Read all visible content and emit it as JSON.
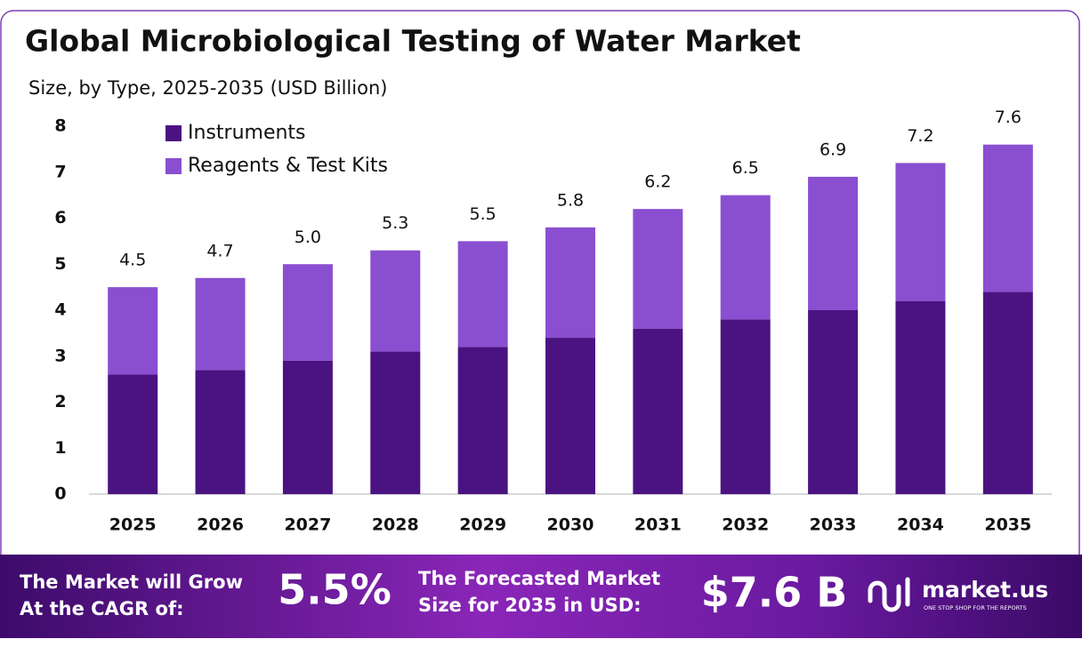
{
  "chart_data": {
    "type": "stacked-bar",
    "title": "Global Microbiological Testing of Water Market",
    "subtitle": "Size, by Type, 2025-2035 (USD Billion)",
    "categories": [
      "2025",
      "2026",
      "2027",
      "2028",
      "2029",
      "2030",
      "2031",
      "2032",
      "2033",
      "2034",
      "2035"
    ],
    "series": [
      {
        "name": "Instruments",
        "color": "#4b1382",
        "values": [
          2.6,
          2.7,
          2.9,
          3.1,
          3.2,
          3.4,
          3.6,
          3.8,
          4.0,
          4.2,
          4.4
        ]
      },
      {
        "name": "Reagents & Test Kits",
        "color": "#8a4fd0",
        "values": [
          1.9,
          2.0,
          2.1,
          2.2,
          2.3,
          2.4,
          2.6,
          2.7,
          2.9,
          3.0,
          3.2
        ]
      }
    ],
    "totals": [
      4.5,
      4.7,
      5.0,
      5.3,
      5.5,
      5.8,
      6.2,
      6.5,
      6.9,
      7.2,
      7.6
    ],
    "total_labels": [
      "4.5",
      "4.7",
      "5.0",
      "5.3",
      "5.5",
      "5.8",
      "6.2",
      "6.5",
      "6.9",
      "7.2",
      "7.6"
    ],
    "ylim": [
      0,
      8
    ],
    "yticks": [
      0,
      1,
      2,
      3,
      4,
      5,
      6,
      7,
      8
    ],
    "grid": false,
    "legend": "top-left"
  },
  "footer": {
    "cagr_text": [
      "The Market will Grow",
      "At the CAGR of:"
    ],
    "cagr_value": "5.5%",
    "forecast_text": [
      "The Forecasted Market",
      "Size for 2035 in USD:"
    ],
    "forecast_value": "$7.6 B",
    "brand": "market.us",
    "tagline": "ONE STOP SHOP FOR THE REPORTS"
  }
}
